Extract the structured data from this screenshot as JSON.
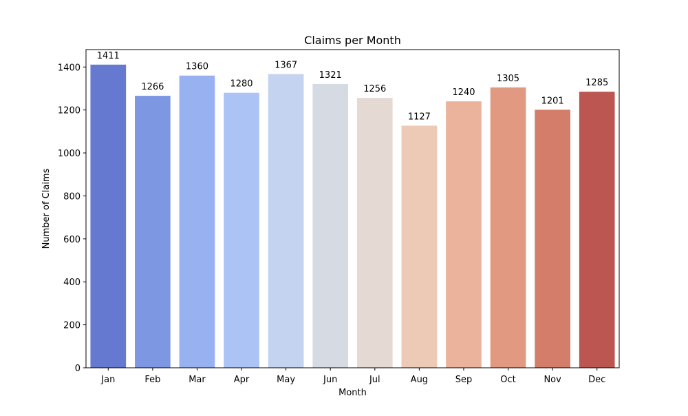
{
  "chart_data": {
    "type": "bar",
    "title": "Claims per Month",
    "xlabel": "Month",
    "ylabel": "Number of Claims",
    "categories": [
      "Jan",
      "Feb",
      "Mar",
      "Apr",
      "May",
      "Jun",
      "Jul",
      "Aug",
      "Sep",
      "Oct",
      "Nov",
      "Dec"
    ],
    "values": [
      1411,
      1266,
      1360,
      1280,
      1367,
      1321,
      1256,
      1127,
      1240,
      1305,
      1201,
      1285
    ],
    "data_labels": [
      "1411",
      "1266",
      "1360",
      "1280",
      "1367",
      "1321",
      "1256",
      "1127",
      "1240",
      "1305",
      "1201",
      "1285"
    ],
    "ylim": [
      0,
      1481
    ],
    "yticks": [
      0,
      200,
      400,
      600,
      800,
      1000,
      1200,
      1400
    ],
    "ytick_labels": [
      "0",
      "200",
      "400",
      "600",
      "800",
      "1000",
      "1200",
      "1400"
    ],
    "grid": false,
    "colors": [
      "#6479cf",
      "#7d97e3",
      "#97b1f1",
      "#acc3f6",
      "#c4d3ef",
      "#d5dae3",
      "#e5d9d3",
      "#eccab6",
      "#ebb39c",
      "#e19a81",
      "#d37d6a",
      "#bc5650"
    ]
  }
}
